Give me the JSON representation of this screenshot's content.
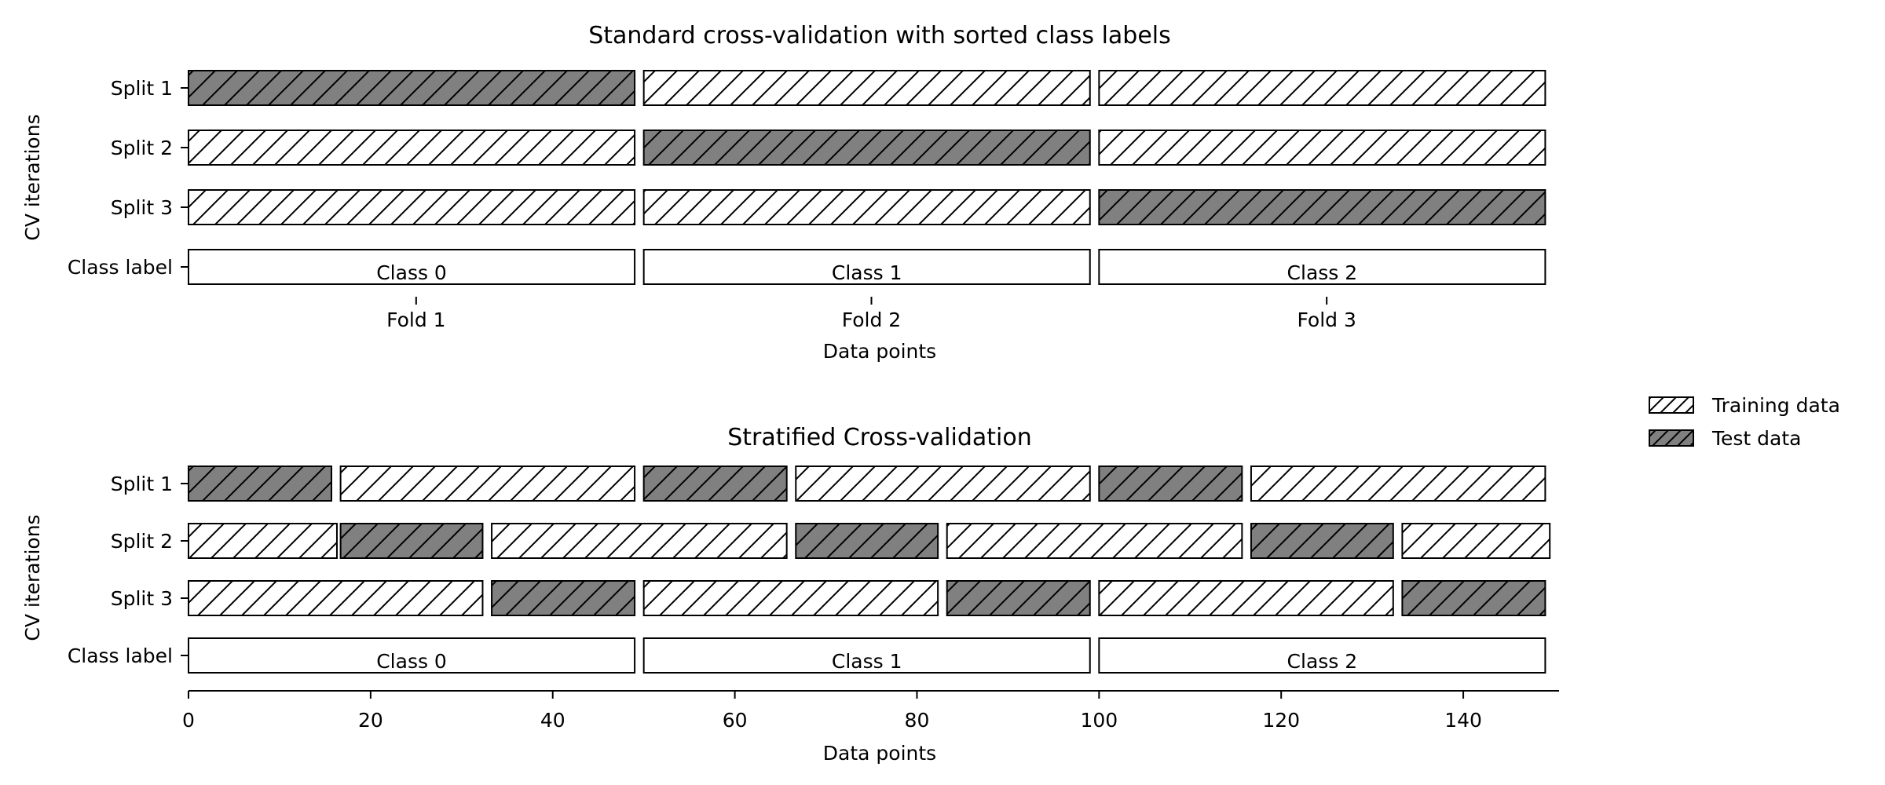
{
  "chart_data": [
    {
      "type": "bar",
      "orientation": "horizontal",
      "title": "Standard cross-validation with sorted class labels",
      "xlabel": "Data points",
      "ylabel": "CV iterations",
      "xlim": [
        0,
        150
      ],
      "x_ticks": [
        {
          "value": 25,
          "label": "Fold 1"
        },
        {
          "value": 75,
          "label": "Fold 2"
        },
        {
          "value": 125,
          "label": "Fold 3"
        }
      ],
      "rows": [
        {
          "label": "Split 1",
          "segments": [
            {
              "start": 0,
              "end": 49,
              "kind": "test"
            },
            {
              "start": 50,
              "end": 99,
              "kind": "train"
            },
            {
              "start": 100,
              "end": 149,
              "kind": "train"
            }
          ]
        },
        {
          "label": "Split 2",
          "segments": [
            {
              "start": 0,
              "end": 49,
              "kind": "train"
            },
            {
              "start": 50,
              "end": 99,
              "kind": "test"
            },
            {
              "start": 100,
              "end": 149,
              "kind": "train"
            }
          ]
        },
        {
          "label": "Split 3",
          "segments": [
            {
              "start": 0,
              "end": 49,
              "kind": "train"
            },
            {
              "start": 50,
              "end": 99,
              "kind": "train"
            },
            {
              "start": 100,
              "end": 149,
              "kind": "test"
            }
          ]
        },
        {
          "label": "Class label",
          "segments": [
            {
              "start": 0,
              "end": 49,
              "kind": "class",
              "text": "Class 0"
            },
            {
              "start": 50,
              "end": 99,
              "kind": "class",
              "text": "Class 1"
            },
            {
              "start": 100,
              "end": 149,
              "kind": "class",
              "text": "Class 2"
            }
          ]
        }
      ]
    },
    {
      "type": "bar",
      "orientation": "horizontal",
      "title": "Stratified Cross-validation",
      "xlabel": "Data points",
      "ylabel": "CV iterations",
      "xlim": [
        0,
        150
      ],
      "x_ticks": [
        {
          "value": 0,
          "label": "0"
        },
        {
          "value": 20,
          "label": "20"
        },
        {
          "value": 40,
          "label": "40"
        },
        {
          "value": 60,
          "label": "60"
        },
        {
          "value": 80,
          "label": "80"
        },
        {
          "value": 100,
          "label": "100"
        },
        {
          "value": 120,
          "label": "120"
        },
        {
          "value": 140,
          "label": "140"
        }
      ],
      "rows": [
        {
          "label": "Split 1",
          "segments": [
            {
              "start": 0,
              "end": 15.7,
              "kind": "test"
            },
            {
              "start": 16.7,
              "end": 49,
              "kind": "train"
            },
            {
              "start": 50,
              "end": 65.7,
              "kind": "test"
            },
            {
              "start": 66.7,
              "end": 99,
              "kind": "train"
            },
            {
              "start": 100,
              "end": 115.7,
              "kind": "test"
            },
            {
              "start": 116.7,
              "end": 149,
              "kind": "train"
            }
          ]
        },
        {
          "label": "Split 2",
          "segments": [
            {
              "start": 0,
              "end": 16.3,
              "kind": "train"
            },
            {
              "start": 16.7,
              "end": 32.3,
              "kind": "test"
            },
            {
              "start": 33.3,
              "end": 65.7,
              "kind": "train"
            },
            {
              "start": 66.7,
              "end": 82.3,
              "kind": "test"
            },
            {
              "start": 83.3,
              "end": 115.7,
              "kind": "train"
            },
            {
              "start": 116.7,
              "end": 132.3,
              "kind": "test"
            },
            {
              "start": 133.3,
              "end": 149.5,
              "kind": "train"
            }
          ]
        },
        {
          "label": "Split 3",
          "segments": [
            {
              "start": 0,
              "end": 32.3,
              "kind": "train"
            },
            {
              "start": 33.3,
              "end": 49,
              "kind": "test"
            },
            {
              "start": 50,
              "end": 82.3,
              "kind": "train"
            },
            {
              "start": 83.3,
              "end": 99,
              "kind": "test"
            },
            {
              "start": 100,
              "end": 132.3,
              "kind": "train"
            },
            {
              "start": 133.3,
              "end": 149,
              "kind": "test"
            }
          ]
        },
        {
          "label": "Class label",
          "segments": [
            {
              "start": 0,
              "end": 49,
              "kind": "class",
              "text": "Class 0"
            },
            {
              "start": 50,
              "end": 99,
              "kind": "class",
              "text": "Class 1"
            },
            {
              "start": 100,
              "end": 149,
              "kind": "class",
              "text": "Class 2"
            }
          ]
        }
      ]
    }
  ],
  "legend": {
    "placement": "right",
    "items": [
      {
        "label": "Training data",
        "kind": "train"
      },
      {
        "label": "Test data",
        "kind": "test"
      }
    ]
  },
  "colors": {
    "train": "#ffffff",
    "test": "#808080",
    "class": "#ffffff",
    "edge": "#000000"
  }
}
